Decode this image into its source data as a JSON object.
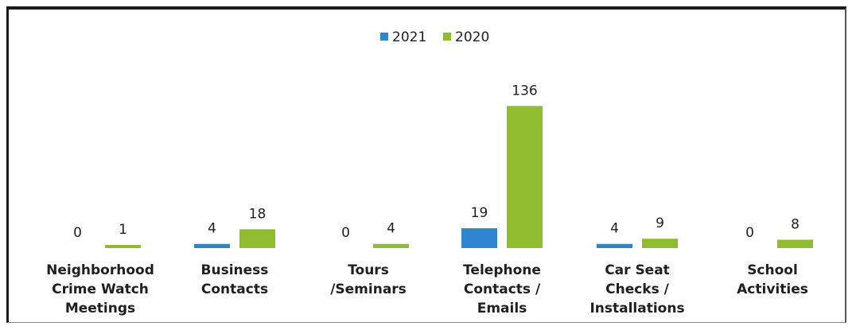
{
  "chart_data": {
    "type": "bar",
    "title": "",
    "xlabel": "",
    "ylabel": "",
    "ylim": [
      0,
      140
    ],
    "legend_position": "top-center",
    "grid": false,
    "categories": [
      [
        "Neighborhood",
        "Crime Watch",
        "Meetings"
      ],
      [
        "Business",
        "Contacts"
      ],
      [
        "Tours",
        "/Seminars"
      ],
      [
        "Telephone",
        "Contacts /",
        "Emails"
      ],
      [
        "Car Seat",
        "Checks /",
        "Installations"
      ],
      [
        "School",
        "Activities"
      ]
    ],
    "series": [
      {
        "name": "2021",
        "color": "#2e86d0",
        "values": [
          0,
          4,
          0,
          19,
          4,
          0
        ]
      },
      {
        "name": "2020",
        "color": "#8fbd2f",
        "values": [
          1,
          18,
          4,
          136,
          9,
          8
        ]
      }
    ]
  }
}
